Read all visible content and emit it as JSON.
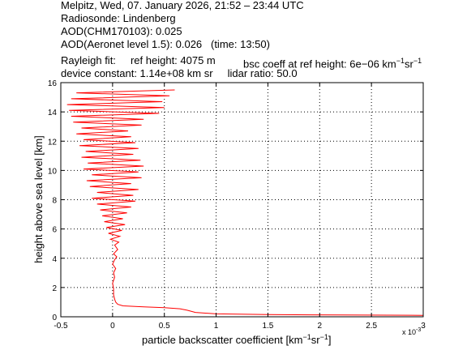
{
  "header": {
    "line1": "Melpitz, Wed, 07. January 2026, 21:52 – 23:44 UTC",
    "line2": "Radiosonde: Lindenberg",
    "line3": "AOD(CHM170103): 0.025",
    "line4": "AOD(Aeronet level 1.5): 0.026   (time: 13:50)",
    "line5a": "Rayleigh fit:     ref height: 4075 m",
    "line5b": "bsc coeff at ref height: 6e−06 km",
    "line5b_sup1": "−1",
    "line5b_mid": "sr",
    "line5b_sup2": "−1",
    "line6": "device constant: 1.14e+08 km sr     lidar ratio: 50.0"
  },
  "chart_data": {
    "type": "line",
    "xlabel": "particle backscatter coefficient [km⁻¹sr⁻¹]",
    "xlabel_main": "particle backscatter coefficient [km",
    "xlabel_sup1": "−1",
    "xlabel_mid": "sr",
    "xlabel_sup2": "−1",
    "xlabel_end": "]",
    "ylabel": "height above sea level [km]",
    "xlim": [
      -0.5,
      3
    ],
    "ylim": [
      0,
      16
    ],
    "x_ticks": [
      -0.5,
      0,
      0.5,
      1,
      1.5,
      2,
      2.5,
      3
    ],
    "x_tick_labels": [
      "-0.5",
      "0",
      "0.5",
      "1",
      "1.5",
      "2",
      "2.5",
      "3"
    ],
    "y_ticks": [
      0,
      2,
      4,
      6,
      8,
      10,
      12,
      14,
      16
    ],
    "y_tick_labels": [
      "0",
      "2",
      "4",
      "6",
      "8",
      "10",
      "12",
      "14",
      "16"
    ],
    "x_multiplier": "x 10",
    "x_multiplier_exp": "-3",
    "grid": true,
    "line_color": "#ff0000",
    "series": [
      {
        "values": [
          [
            3.0,
            0.1
          ],
          [
            2.2,
            0.12
          ],
          [
            1.5,
            0.15
          ],
          [
            1.0,
            0.2
          ],
          [
            0.8,
            0.3
          ],
          [
            0.72,
            0.45
          ],
          [
            0.65,
            0.55
          ],
          [
            0.5,
            0.62
          ],
          [
            0.3,
            0.68
          ],
          [
            0.1,
            0.75
          ],
          [
            0.05,
            0.85
          ],
          [
            0.03,
            1.0
          ],
          [
            0.02,
            1.2
          ],
          [
            0.01,
            1.5
          ],
          [
            0.01,
            1.9
          ],
          [
            0.0,
            2.3
          ],
          [
            0.02,
            2.7
          ],
          [
            0.01,
            3.0
          ],
          [
            0.03,
            3.3
          ],
          [
            0.0,
            3.6
          ],
          [
            0.02,
            3.9
          ],
          [
            0.04,
            4.1
          ],
          [
            0.01,
            4.3
          ],
          [
            0.05,
            4.6
          ],
          [
            0.02,
            4.9
          ],
          [
            0.06,
            5.1
          ],
          [
            -0.02,
            5.3
          ],
          [
            0.07,
            5.5
          ],
          [
            -0.04,
            5.7
          ],
          [
            0.09,
            5.9
          ],
          [
            -0.06,
            6.1
          ],
          [
            0.12,
            6.3
          ],
          [
            -0.08,
            6.5
          ],
          [
            0.1,
            6.7
          ],
          [
            -0.1,
            6.9
          ],
          [
            0.14,
            7.1
          ],
          [
            -0.12,
            7.3
          ],
          [
            0.18,
            7.5
          ],
          [
            -0.15,
            7.7
          ],
          [
            0.22,
            7.9
          ],
          [
            -0.2,
            8.1
          ],
          [
            0.2,
            8.3
          ],
          [
            -0.15,
            8.5
          ],
          [
            0.25,
            8.7
          ],
          [
            -0.22,
            8.9
          ],
          [
            0.18,
            9.1
          ],
          [
            -0.25,
            9.3
          ],
          [
            0.28,
            9.5
          ],
          [
            -0.2,
            9.7
          ],
          [
            0.25,
            9.9
          ],
          [
            -0.28,
            10.1
          ],
          [
            0.3,
            10.3
          ],
          [
            -0.24,
            10.5
          ],
          [
            0.27,
            10.7
          ],
          [
            -0.3,
            10.9
          ],
          [
            0.2,
            11.1
          ],
          [
            -0.26,
            11.3
          ],
          [
            0.25,
            11.5
          ],
          [
            -0.32,
            11.7
          ],
          [
            0.22,
            11.9
          ],
          [
            -0.28,
            12.1
          ],
          [
            0.18,
            12.3
          ],
          [
            -0.35,
            12.5
          ],
          [
            0.15,
            12.7
          ],
          [
            -0.3,
            12.9
          ],
          [
            0.28,
            13.1
          ],
          [
            -0.38,
            13.3
          ],
          [
            0.3,
            13.5
          ],
          [
            -0.4,
            13.7
          ],
          [
            0.45,
            13.9
          ],
          [
            -0.42,
            14.1
          ],
          [
            0.5,
            14.3
          ],
          [
            -0.44,
            14.5
          ],
          [
            0.48,
            14.7
          ],
          [
            -0.4,
            14.9
          ],
          [
            0.55,
            15.1
          ],
          [
            -0.35,
            15.3
          ],
          [
            0.6,
            15.5
          ]
        ]
      }
    ]
  }
}
